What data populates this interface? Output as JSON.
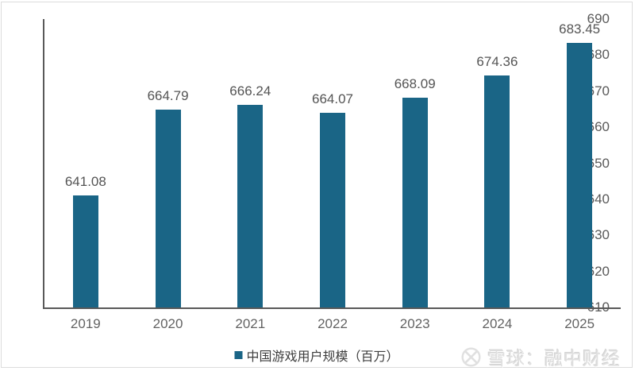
{
  "colors": {
    "bar": "#1a6586",
    "axis": "#595959",
    "tick_label": "#595959",
    "value_label": "#545454",
    "xtick_label": "#636363",
    "legend_text": "#3d3d3d",
    "frame_border": "#dcdcdc",
    "watermark": "#e0e0e0"
  },
  "chart_data": {
    "type": "bar",
    "title": "",
    "categories": [
      "2019",
      "2020",
      "2021",
      "2022",
      "2023",
      "2024",
      "2025"
    ],
    "values": [
      641.08,
      664.79,
      666.24,
      664.07,
      668.09,
      674.36,
      683.45
    ],
    "value_labels": [
      "641.08",
      "664.79",
      "666.24",
      "664.07",
      "668.09",
      "674.36",
      "683.45"
    ],
    "xlabel": "",
    "ylabel": "",
    "ylim": [
      610,
      690
    ],
    "ytick_step": 10,
    "grid": false,
    "legend": {
      "position": "bottom",
      "label": "中国游戏用户规模（百万）"
    }
  },
  "watermark": {
    "logo": "xueqiu-snowball-icon",
    "text": "雪球：融中财经"
  }
}
